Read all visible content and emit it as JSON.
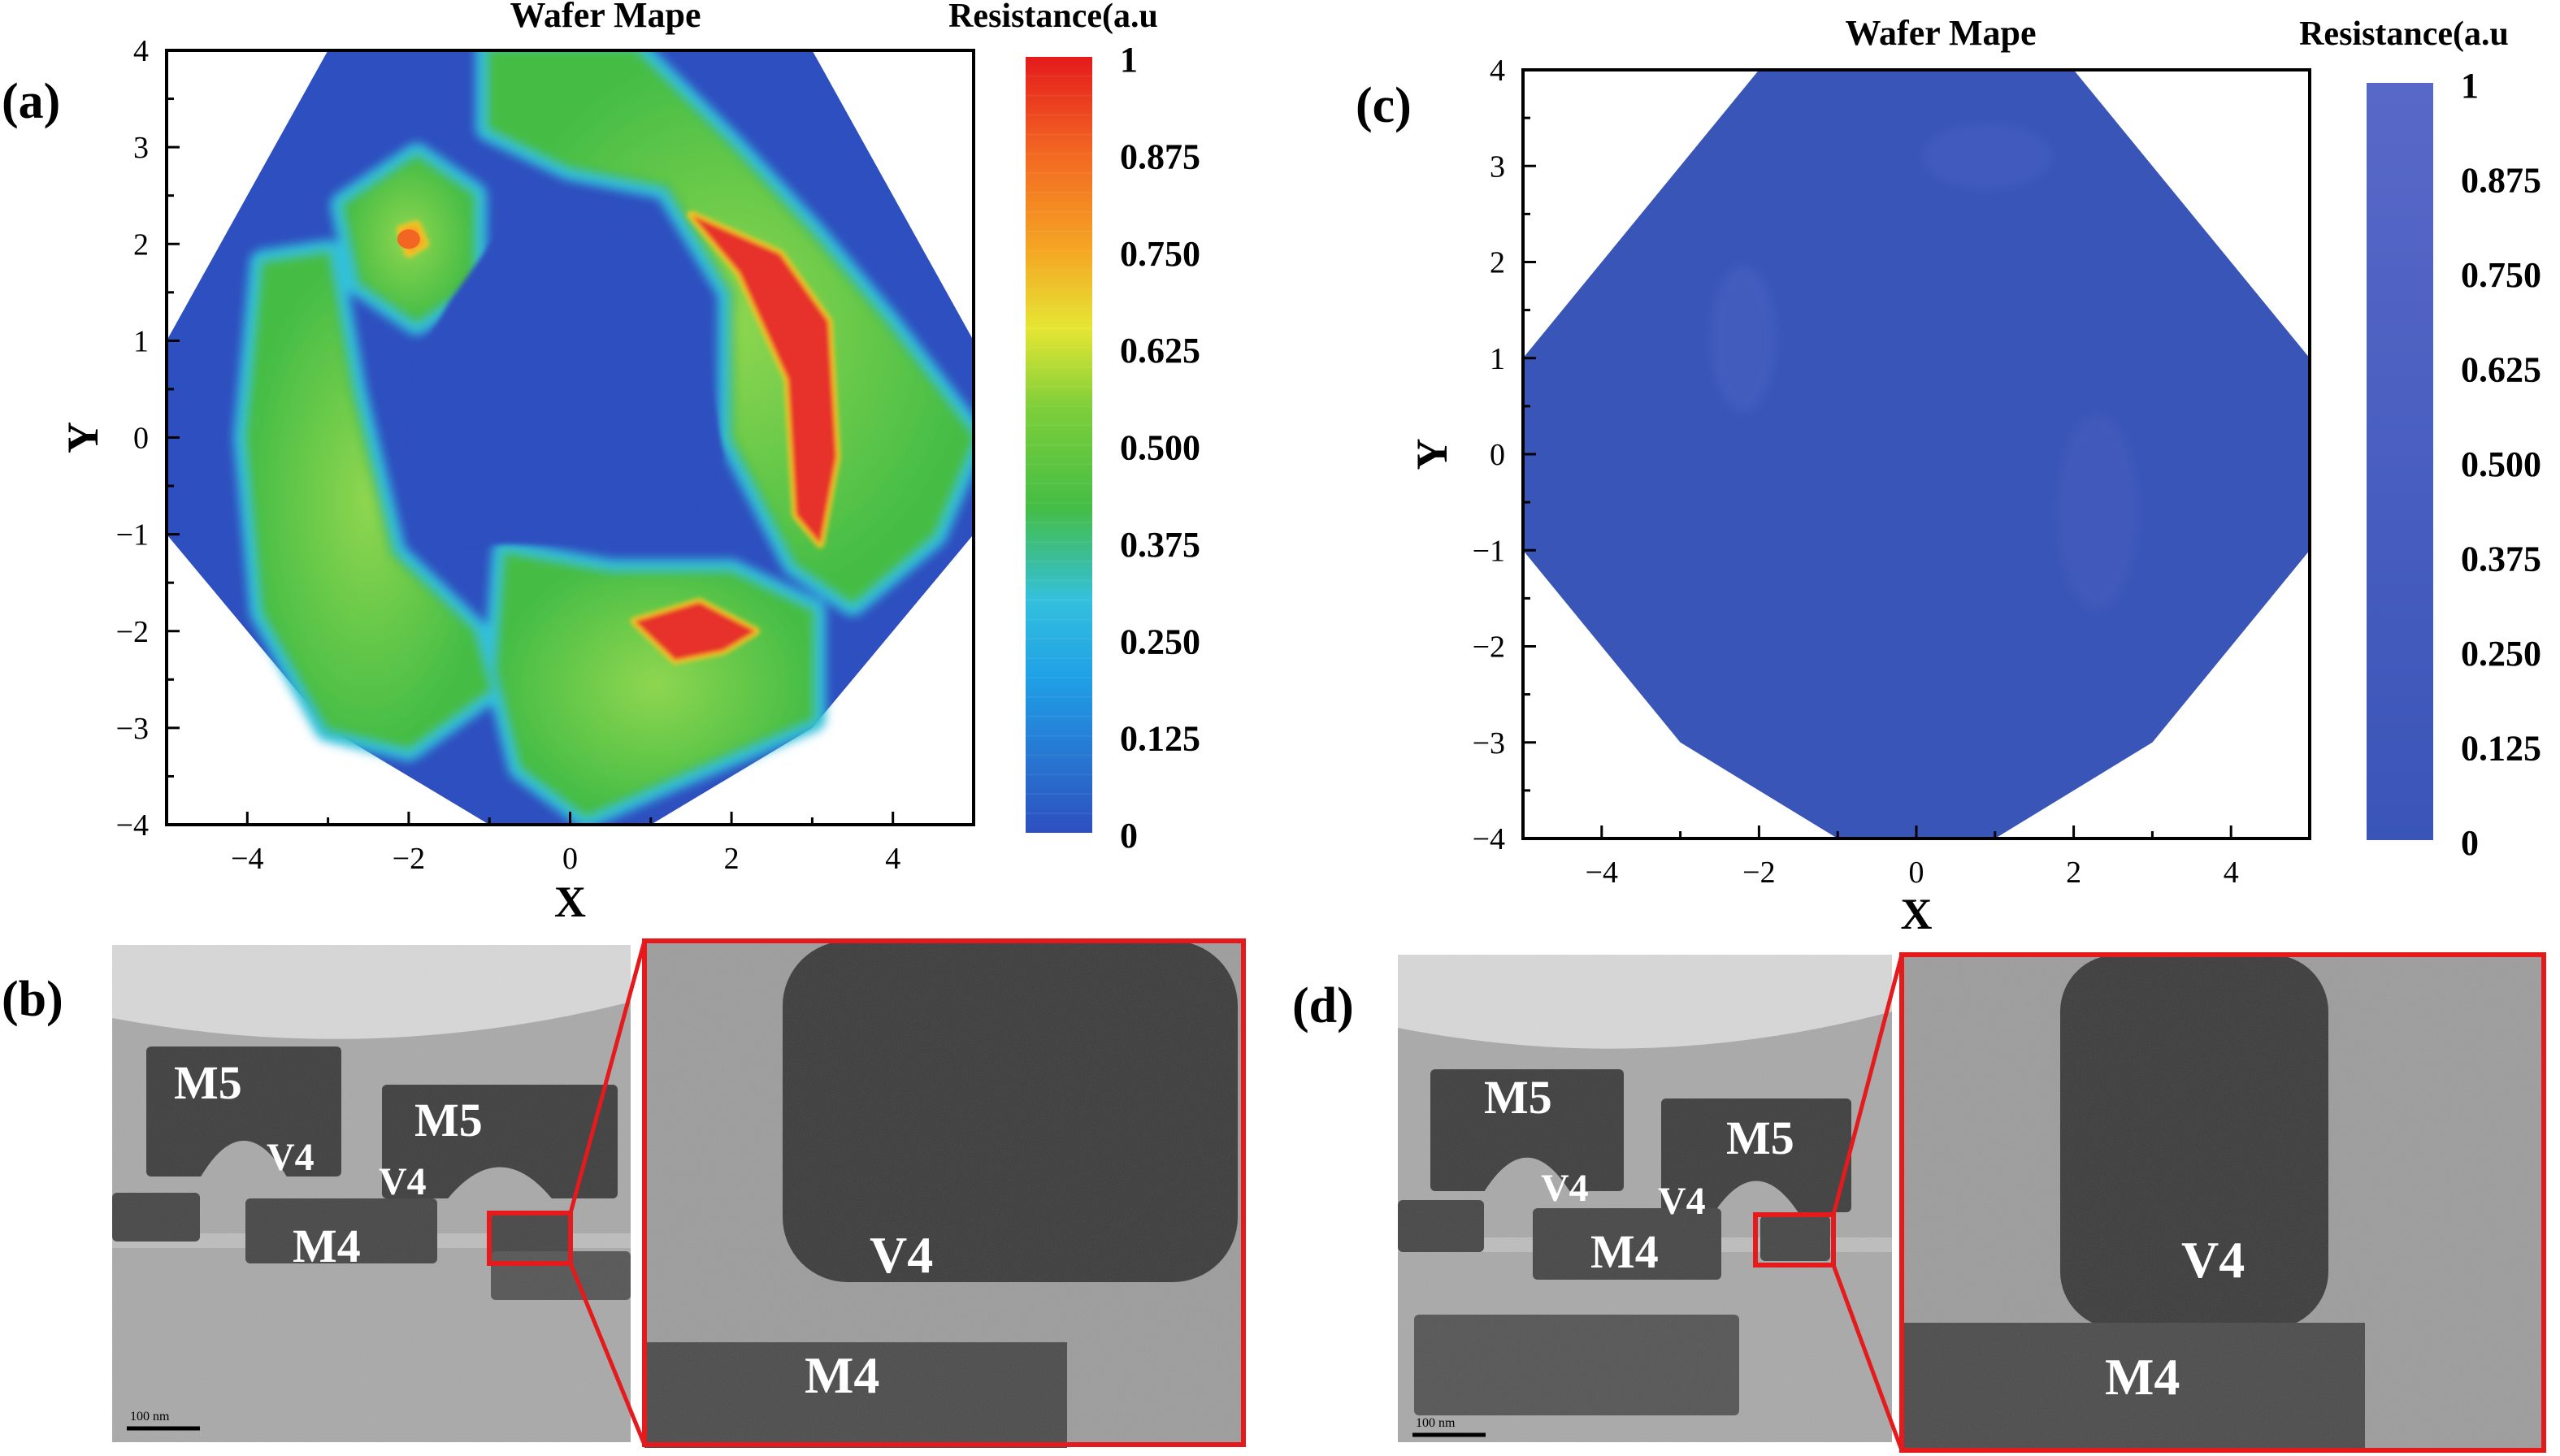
{
  "chart_data": [
    {
      "panel_label": "(a)",
      "type": "heatmap",
      "title": "Wafer Mape",
      "xlabel": "X",
      "ylabel": "Y",
      "xlim": [
        -5,
        5
      ],
      "ylim": [
        -4,
        4
      ],
      "xticks": [
        -4,
        -2,
        0,
        2,
        4
      ],
      "yticks": [
        -4,
        -3,
        -2,
        -1,
        0,
        1,
        2,
        3,
        4
      ],
      "wafer_outline": [
        [
          -3,
          -3
        ],
        [
          -1,
          -4
        ],
        [
          1,
          -4
        ],
        [
          3,
          -3
        ],
        [
          5,
          -1
        ],
        [
          5,
          1
        ],
        [
          3,
          4
        ],
        [
          -3,
          4
        ],
        [
          -5,
          1
        ],
        [
          -5,
          -1
        ]
      ],
      "colorbar": {
        "title": "Resistance(a.u",
        "ticks": [
          "1",
          "0.875",
          "0.750",
          "0.625",
          "0.500",
          "0.375",
          "0.250",
          "0.125",
          "0"
        ],
        "colors": [
          "#2e4fbf",
          "#1fa0e6",
          "#33c0dc",
          "#45bd45",
          "#7fcf3a",
          "#e6e633",
          "#f5a623",
          "#f26522",
          "#e41a1c"
        ]
      },
      "regions": [
        {
          "level": 0.55,
          "peak": 0.78,
          "path": [
            [
              -1,
              4
            ],
            [
              0.8,
              4
            ],
            [
              2,
              3
            ],
            [
              3,
              2.1
            ],
            [
              3.9,
              1.2
            ],
            [
              5,
              0
            ],
            [
              4.5,
              -1
            ],
            [
              3.5,
              -1.7
            ],
            [
              2.8,
              -1.3
            ],
            [
              2,
              0
            ],
            [
              2,
              1.5
            ],
            [
              1.2,
              2.6
            ],
            [
              0,
              2.8
            ],
            [
              -1,
              3.2
            ]
          ]
        },
        {
          "level": 0.55,
          "path": [
            [
              -1.9,
              2.9
            ],
            [
              -1.2,
              2.5
            ],
            [
              -1.2,
              1.6
            ],
            [
              -1.9,
              1.2
            ],
            [
              -2.6,
              1.6
            ],
            [
              -2.8,
              2.4
            ]
          ]
        },
        {
          "level": 0.55,
          "path": [
            [
              -3.8,
              1.8
            ],
            [
              -3,
              1.9
            ],
            [
              -2.7,
              0.5
            ],
            [
              -2.2,
              -1.2
            ],
            [
              -1.2,
              -2
            ],
            [
              -1,
              -2.6
            ],
            [
              -2,
              -3.2
            ],
            [
              -3,
              -3
            ],
            [
              -3.8,
              -1.8
            ],
            [
              -4,
              0
            ]
          ]
        },
        {
          "level": 0.58,
          "path": [
            [
              -0.8,
              -1.2
            ],
            [
              0.5,
              -1.4
            ],
            [
              2,
              -1.4
            ],
            [
              3,
              -1.8
            ],
            [
              3,
              -2.9
            ],
            [
              1.3,
              -3.5
            ],
            [
              0.2,
              -3.9
            ],
            [
              -0.6,
              -3.4
            ],
            [
              -0.9,
              -2.4
            ]
          ]
        }
      ],
      "hotspots": [
        {
          "value": 0.95,
          "path": [
            [
              1.5,
              2.3
            ],
            [
              2.6,
              1.9
            ],
            [
              3.2,
              1.2
            ],
            [
              3.3,
              -0.2
            ],
            [
              3.1,
              -1.1
            ],
            [
              2.8,
              -0.8
            ],
            [
              2.7,
              0.6
            ],
            [
              2.1,
              1.7
            ]
          ]
        },
        {
          "value": 0.95,
          "path": [
            [
              0.8,
              -1.9
            ],
            [
              1.6,
              -1.7
            ],
            [
              2.3,
              -2
            ],
            [
              1.9,
              -2.2
            ],
            [
              1.3,
              -2.3
            ]
          ]
        },
        {
          "value": 0.7,
          "path": [
            [
              -2.1,
              2.15
            ],
            [
              -1.9,
              2.2
            ],
            [
              -1.8,
              2
            ],
            [
              -2,
              1.9
            ]
          ]
        }
      ]
    },
    {
      "panel_label": "(c)",
      "type": "heatmap",
      "title": "Wafer Mape",
      "xlabel": "X",
      "ylabel": "Y",
      "xlim": [
        -5,
        5
      ],
      "ylim": [
        -4,
        4
      ],
      "xticks": [
        -4,
        -2,
        0,
        2,
        4
      ],
      "yticks": [
        -4,
        -3,
        -2,
        -1,
        0,
        1,
        2,
        3,
        4
      ],
      "wafer_outline": [
        [
          -3,
          -3
        ],
        [
          -1,
          -4
        ],
        [
          1,
          -4
        ],
        [
          3,
          -3
        ],
        [
          5,
          -1
        ],
        [
          5,
          1
        ],
        [
          2,
          4
        ],
        [
          -2,
          4
        ],
        [
          -5,
          1
        ],
        [
          -5,
          -1
        ]
      ],
      "uniform_value": 0.0,
      "colorbar": {
        "title": "Resistance(a.u",
        "ticks": [
          "1",
          "0.875",
          "0.750",
          "0.625",
          "0.500",
          "0.375",
          "0.250",
          "0.125",
          "0"
        ],
        "colors": [
          "#3a55b8",
          "#5868c8"
        ]
      }
    }
  ],
  "tem_panels": [
    {
      "panel_label": "(b)",
      "overview_labels": [
        "M5",
        "M5",
        "V4",
        "V4",
        "M4"
      ],
      "scale_bar": "100 nm",
      "zoom_labels": [
        "V4",
        "M4"
      ],
      "inset_box_color": "#e41a1c"
    },
    {
      "panel_label": "(d)",
      "overview_labels": [
        "M5",
        "M5",
        "V4",
        "V4",
        "M4"
      ],
      "scale_bar": "100 nm",
      "zoom_labels": [
        "V4",
        "M4"
      ],
      "inset_box_color": "#e41a1c"
    }
  ]
}
